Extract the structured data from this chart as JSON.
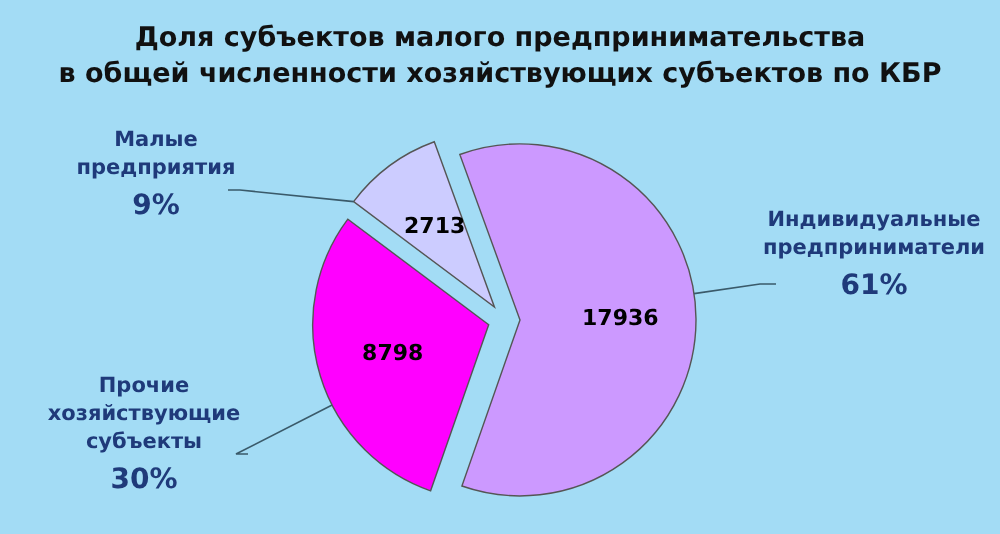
{
  "chart_data": {
    "type": "pie",
    "title": "Доля субъектов малого предпринимательства\nв общей численности хозяйствующих субъектов по КБР",
    "categories": [
      "Индивидуальные предприниматели",
      "Прочие хозяйствующие субъекты",
      "Малые предприятия"
    ],
    "values": [
      17936,
      8798,
      2713
    ],
    "colors": [
      "#cc99ff",
      "#ff00ff",
      "#ccccff"
    ],
    "data_labels": true,
    "annotations": [
      {
        "text": "61%",
        "x": "Индивидуальные предприниматели"
      },
      {
        "text": "30%",
        "x": "Прочие хозяйствующие субъекты"
      },
      {
        "text": "9%",
        "x": "Малые предприятия"
      }
    ]
  }
}
